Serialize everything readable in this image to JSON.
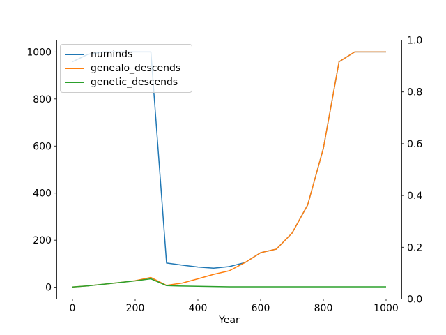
{
  "figure": {
    "background": "#ffffff",
    "frame_color": "#000000",
    "text_color": "#000000"
  },
  "chart_data": {
    "type": "line",
    "title": "",
    "xlabel": "Year",
    "ylabel": "",
    "grid": false,
    "line_width": 1.5,
    "x": [
      0,
      50,
      100,
      150,
      200,
      250,
      300,
      350,
      400,
      450,
      500,
      550,
      600,
      650,
      700,
      750,
      800,
      850,
      900,
      950,
      1000
    ],
    "series": [
      {
        "name": "numinds",
        "color": "#1f77b4",
        "values": [
          958,
          990,
          1000,
          1000,
          1000,
          1000,
          103,
          94,
          86,
          81,
          88,
          105,
          147,
          162,
          230,
          350,
          590,
          958,
          1000,
          1000,
          1000
        ]
      },
      {
        "name": "genealo_descends",
        "color": "#ff7f0e",
        "values": [
          1,
          6,
          13,
          20,
          28,
          42,
          8,
          18,
          36,
          55,
          70,
          105,
          147,
          162,
          230,
          350,
          590,
          958,
          1000,
          1000,
          1000
        ]
      },
      {
        "name": "genetic_descends",
        "color": "#2ca02c",
        "values": [
          1,
          6,
          13,
          20,
          27,
          36,
          7,
          5,
          4,
          3,
          2,
          2,
          2,
          2,
          2,
          2,
          2,
          2,
          2,
          2,
          2
        ]
      }
    ],
    "x_axis": {
      "lim": [
        -50,
        1050
      ],
      "tick_values": [
        0,
        200,
        400,
        600,
        800,
        1000
      ],
      "tick_labels": [
        "0",
        "200",
        "400",
        "600",
        "800",
        "1000"
      ]
    },
    "left_axis": {
      "lim": [
        -50,
        1050
      ],
      "tick_values": [
        0,
        200,
        400,
        600,
        800,
        1000
      ],
      "tick_labels": [
        "0",
        "200",
        "400",
        "600",
        "800",
        "1000"
      ]
    },
    "right_axis": {
      "lim": [
        0,
        1
      ],
      "tick_values": [
        0.0,
        0.2,
        0.4,
        0.6,
        0.8,
        1.0
      ],
      "tick_labels": [
        "0.0",
        "0.2",
        "0.4",
        "0.6",
        "0.8",
        "1.0"
      ]
    },
    "legend": {
      "location": "upper left",
      "entries": [
        "numinds",
        "genealo_descends",
        "genetic_descends"
      ]
    }
  }
}
